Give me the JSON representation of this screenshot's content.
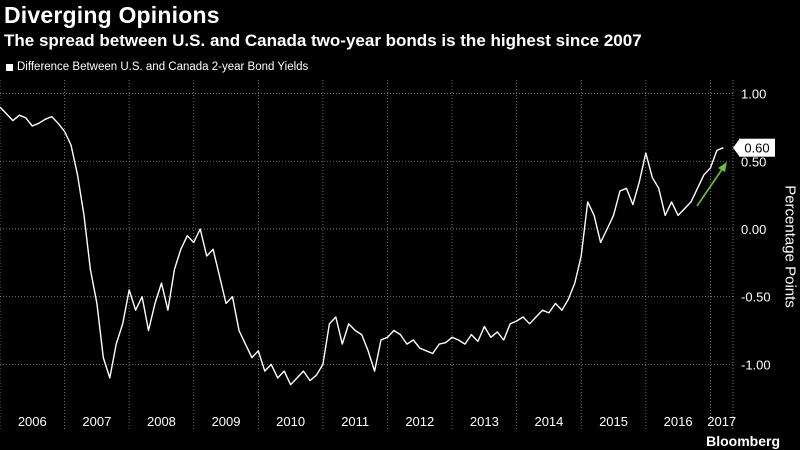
{
  "title": "Diverging Opinions",
  "subtitle": "The spread between U.S. and Canada two-year bonds is the highest since 2007",
  "brand": "Bloomberg",
  "chart_data": {
    "type": "line",
    "legend": "Difference Between U.S. and Canada 2-year Bond Yields",
    "legend_position": "top-left",
    "ylabel": "Percentage Points",
    "ylim": [
      -1.3,
      1.1
    ],
    "xlim": [
      2006.0,
      2017.35
    ],
    "yticks": [
      1.0,
      0.5,
      0.0,
      -0.5,
      -1.0
    ],
    "ytick_labels": [
      "1.00",
      "0.50",
      "0.00",
      "-0.50",
      "-1.00"
    ],
    "xtick_labels": [
      "2006",
      "2007",
      "2008",
      "2009",
      "2010",
      "2011",
      "2012",
      "2013",
      "2014",
      "2015",
      "2016",
      "2017"
    ],
    "grid": true,
    "last_value_label": "0.60",
    "annotation": "green arrow pointing up toward the latest value",
    "colors": {
      "line": "#ffffff",
      "arrow": "#6cbf3c",
      "grid": "#8a8a8a"
    },
    "series": [
      {
        "x": [
          2006.0,
          2006.1,
          2006.2,
          2006.3,
          2006.4,
          2006.5,
          2006.6,
          2006.7,
          2006.8,
          2006.9,
          2007.0,
          2007.1,
          2007.2,
          2007.3,
          2007.4,
          2007.5,
          2007.6,
          2007.7,
          2007.8,
          2007.9,
          2008.0,
          2008.1,
          2008.2,
          2008.3,
          2008.4,
          2008.5,
          2008.6,
          2008.7,
          2008.8,
          2008.9,
          2009.0,
          2009.1,
          2009.2,
          2009.3,
          2009.4,
          2009.5,
          2009.6,
          2009.7,
          2009.8,
          2009.9,
          2010.0,
          2010.1,
          2010.2,
          2010.3,
          2010.4,
          2010.5,
          2010.6,
          2010.7,
          2010.8,
          2010.9,
          2011.0,
          2011.1,
          2011.2,
          2011.3,
          2011.4,
          2011.5,
          2011.6,
          2011.7,
          2011.8,
          2011.9,
          2012.0,
          2012.1,
          2012.2,
          2012.3,
          2012.4,
          2012.5,
          2012.6,
          2012.7,
          2012.8,
          2012.9,
          2013.0,
          2013.1,
          2013.2,
          2013.3,
          2013.4,
          2013.5,
          2013.6,
          2013.7,
          2013.8,
          2013.9,
          2014.0,
          2014.1,
          2014.2,
          2014.3,
          2014.4,
          2014.5,
          2014.6,
          2014.7,
          2014.8,
          2014.9,
          2015.0,
          2015.1,
          2015.2,
          2015.3,
          2015.4,
          2015.5,
          2015.6,
          2015.7,
          2015.8,
          2015.9,
          2016.0,
          2016.1,
          2016.2,
          2016.3,
          2016.4,
          2016.5,
          2016.6,
          2016.7,
          2016.8,
          2016.9,
          2017.0,
          2017.1,
          2017.2
        ],
        "y": [
          0.9,
          0.85,
          0.8,
          0.84,
          0.82,
          0.76,
          0.78,
          0.81,
          0.83,
          0.78,
          0.72,
          0.62,
          0.4,
          0.1,
          -0.3,
          -0.55,
          -0.95,
          -1.1,
          -0.85,
          -0.7,
          -0.45,
          -0.6,
          -0.5,
          -0.75,
          -0.55,
          -0.4,
          -0.6,
          -0.3,
          -0.15,
          -0.05,
          -0.1,
          0.0,
          -0.2,
          -0.15,
          -0.35,
          -0.55,
          -0.5,
          -0.75,
          -0.85,
          -0.95,
          -0.9,
          -1.05,
          -1.0,
          -1.1,
          -1.05,
          -1.15,
          -1.1,
          -1.05,
          -1.12,
          -1.08,
          -1.0,
          -0.7,
          -0.65,
          -0.85,
          -0.7,
          -0.75,
          -0.78,
          -0.9,
          -1.05,
          -0.82,
          -0.8,
          -0.75,
          -0.78,
          -0.85,
          -0.82,
          -0.88,
          -0.9,
          -0.92,
          -0.85,
          -0.84,
          -0.8,
          -0.82,
          -0.85,
          -0.78,
          -0.83,
          -0.72,
          -0.8,
          -0.76,
          -0.82,
          -0.7,
          -0.68,
          -0.65,
          -0.7,
          -0.65,
          -0.6,
          -0.62,
          -0.55,
          -0.6,
          -0.52,
          -0.4,
          -0.2,
          0.2,
          0.1,
          -0.1,
          0.0,
          0.1,
          0.28,
          0.3,
          0.18,
          0.35,
          0.56,
          0.38,
          0.3,
          0.1,
          0.2,
          0.1,
          0.15,
          0.2,
          0.3,
          0.4,
          0.45,
          0.58,
          0.6
        ]
      }
    ]
  }
}
